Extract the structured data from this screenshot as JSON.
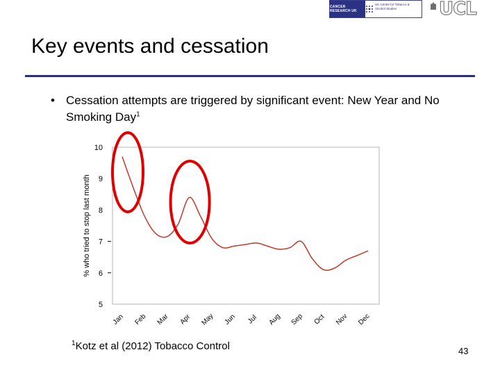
{
  "header": {
    "logo_left": "CANCER RESEARCH UK",
    "logo_partner": "UK Centre for Tobacco & Alcohol Studies",
    "logo_right": "UCL"
  },
  "slide": {
    "title": "Key events and cessation",
    "bullet_text": "Cessation attempts are triggered by significant event: New Year and No Smoking Day",
    "bullet_sup": "1",
    "footnote_sup": "1",
    "footnote_text": "Kotz et al (2012) Tobacco Control",
    "page_number": "43"
  },
  "chart_data": {
    "type": "line",
    "ylabel": "% who tried to stop last month",
    "xlabel": "",
    "categories": [
      "Jan",
      "Feb",
      "Mar",
      "Apr",
      "May",
      "Jun",
      "Jul",
      "Aug",
      "Sep",
      "Oct",
      "Nov",
      "Dec"
    ],
    "ylim": [
      5,
      10
    ],
    "yticks": [
      5,
      6,
      7,
      8,
      9,
      10
    ],
    "series": [
      {
        "color": "#c0392b",
        "x": [
          0.0,
          0.5,
          1.0,
          1.5,
          2.0,
          2.5,
          3.0,
          3.5,
          4.0,
          4.5,
          5.0,
          5.5,
          6.0,
          6.5,
          7.0,
          7.5,
          8.0,
          8.5,
          9.0,
          9.5,
          10.0,
          10.5,
          11.0
        ],
        "values": [
          9.7,
          8.7,
          7.8,
          7.25,
          7.15,
          7.55,
          8.4,
          7.8,
          7.1,
          6.8,
          6.85,
          6.9,
          6.95,
          6.85,
          6.75,
          6.8,
          7.0,
          6.45,
          6.1,
          6.15,
          6.4,
          6.55,
          6.7
        ]
      }
    ],
    "annotations": [
      {
        "type": "ellipse",
        "around": "Jan",
        "color": "#e00000"
      },
      {
        "type": "ellipse",
        "around": "Apr",
        "color": "#e00000"
      }
    ],
    "grid": false
  }
}
